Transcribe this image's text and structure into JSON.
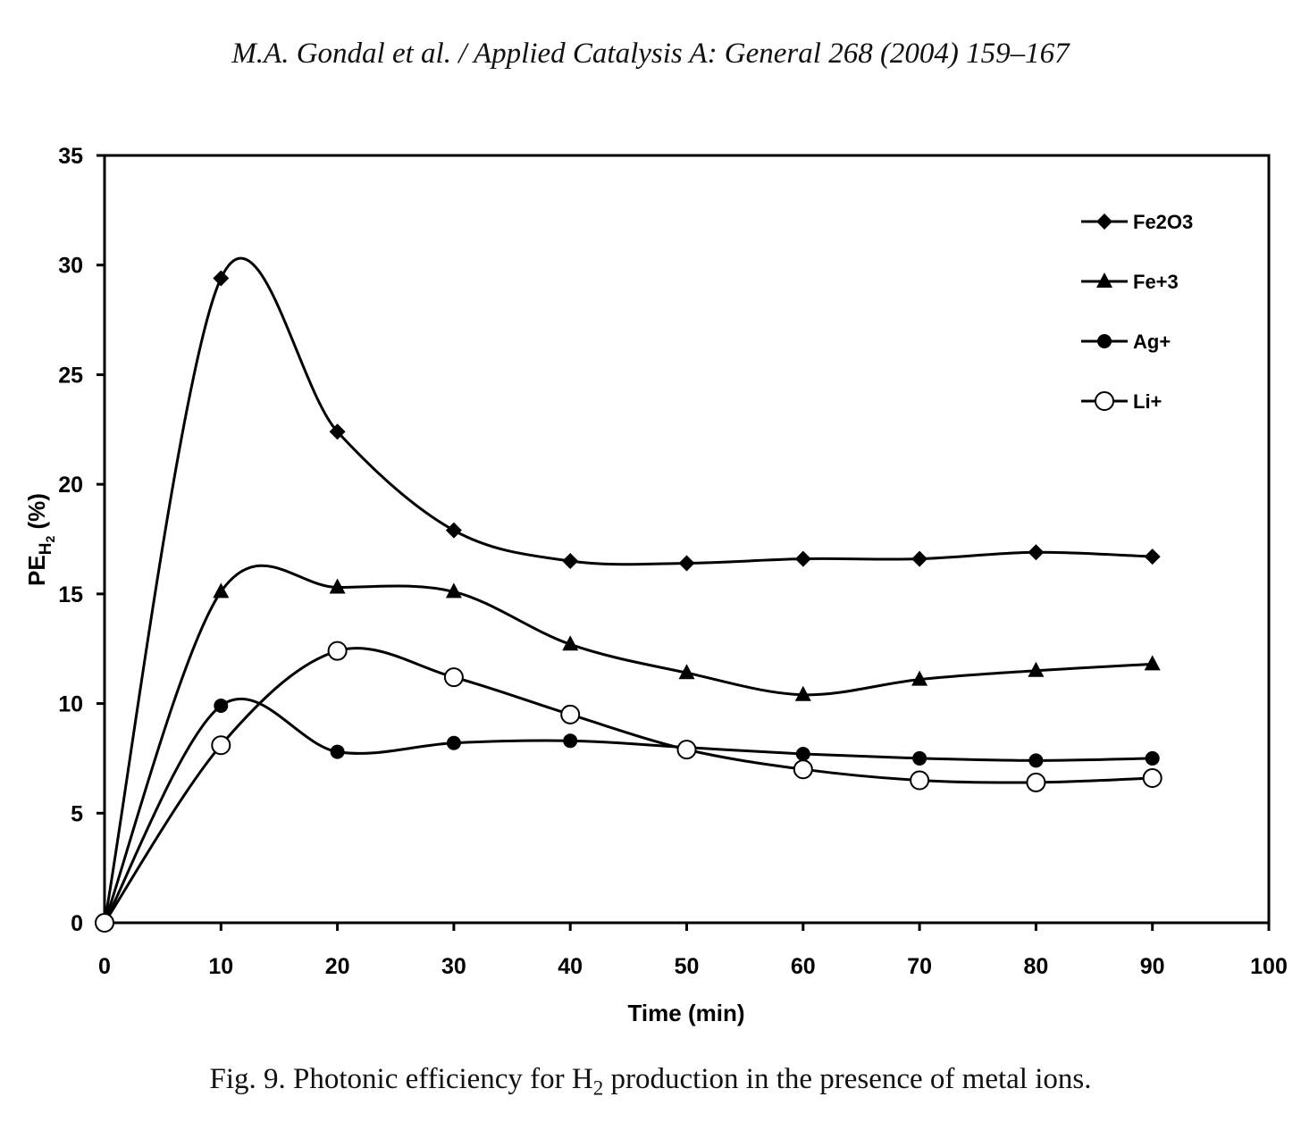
{
  "header": {
    "text": "M.A. Gondal et al. / Applied Catalysis A: General 268 (2004) 159–167"
  },
  "caption": {
    "prefix": "Fig. 9. Photonic efficiency for H",
    "sub": "2",
    "suffix": " production in the presence of metal ions."
  },
  "chart_data": {
    "type": "line",
    "title": "",
    "xlabel": "Time (min)",
    "ylabel_main": "PE",
    "ylabel_sub": "H",
    "ylabel_subsub": "2",
    "ylabel_suffix": " (%)",
    "xlim": [
      0,
      100
    ],
    "ylim": [
      0,
      35
    ],
    "xticks": [
      "0",
      "10",
      "20",
      "30",
      "40",
      "50",
      "60",
      "70",
      "80",
      "90",
      "100"
    ],
    "yticks": [
      "0",
      "5",
      "10",
      "15",
      "20",
      "25",
      "30",
      "35"
    ],
    "grid": false,
    "legend_position": "top-right",
    "x": [
      0,
      10,
      20,
      30,
      40,
      50,
      60,
      70,
      80,
      90
    ],
    "series": [
      {
        "name": "Fe2O3",
        "marker": "diamond",
        "values": [
          0,
          29.4,
          22.4,
          17.9,
          16.5,
          16.4,
          16.6,
          16.6,
          16.9,
          16.7
        ]
      },
      {
        "name": "Fe+3",
        "marker": "triangle",
        "values": [
          0,
          15.1,
          15.3,
          15.1,
          12.7,
          11.4,
          10.4,
          11.1,
          11.5,
          11.8
        ]
      },
      {
        "name": "Ag+",
        "marker": "circle-filled",
        "values": [
          0,
          9.9,
          7.8,
          8.2,
          8.3,
          8.0,
          7.7,
          7.5,
          7.4,
          7.5
        ]
      },
      {
        "name": "Li+",
        "marker": "circle-open",
        "values": [
          0,
          8.1,
          12.4,
          11.2,
          9.5,
          7.9,
          7.0,
          6.5,
          6.4,
          6.6
        ]
      }
    ]
  }
}
